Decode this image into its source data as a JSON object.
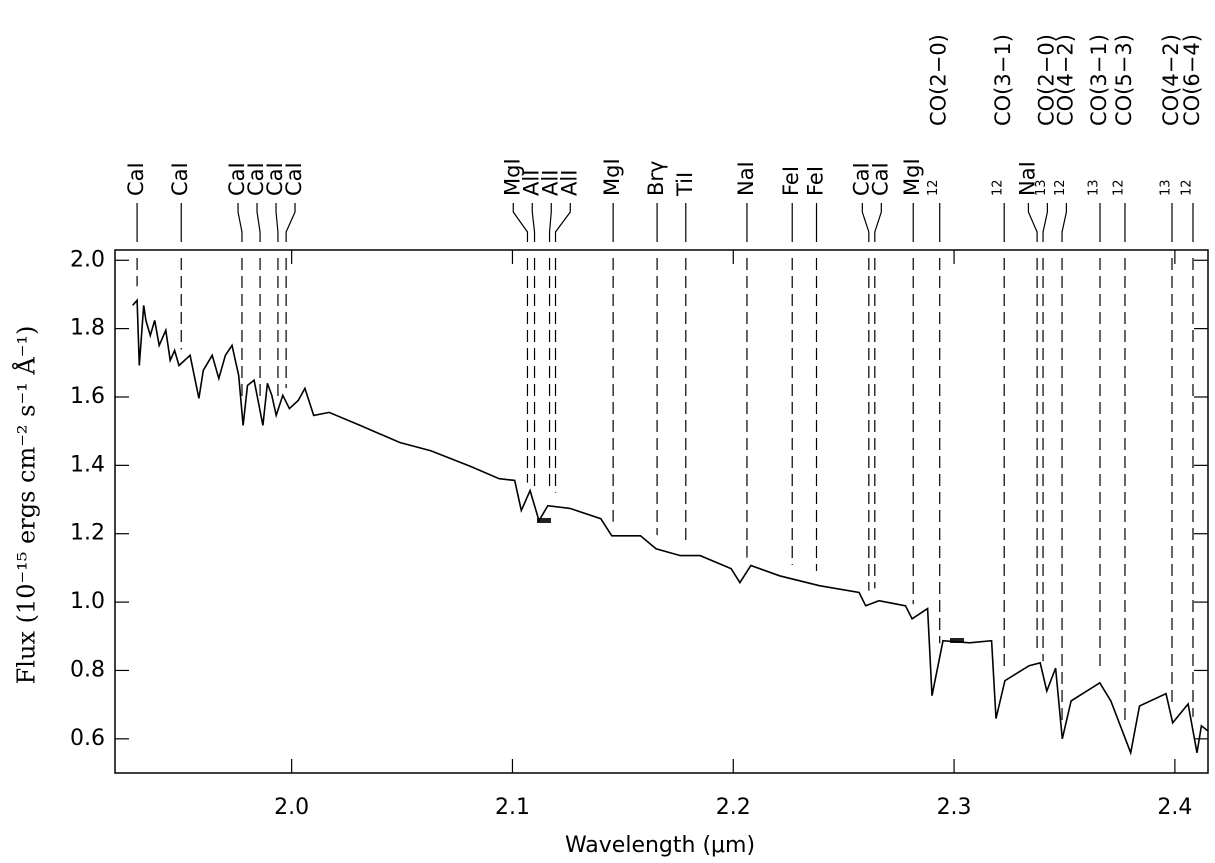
{
  "chart_data": {
    "type": "line",
    "xlabel": "Wavelength (μm)",
    "ylabel": "Flux (10⁻¹⁵ ergs cm⁻² s⁻¹ Å⁻¹)",
    "color": "#000000",
    "xlim": [
      1.92,
      2.415
    ],
    "ylim": [
      0.5,
      2.03
    ],
    "xticks": [
      {
        "value": 2.0,
        "label": "2.0"
      },
      2.1,
      2.2,
      2.3,
      2.4
    ],
    "yticks": [
      0.6,
      0.8,
      {
        "value": 1.0,
        "label": "1.0"
      },
      1.2,
      1.4,
      1.6,
      1.8,
      {
        "value": 2.0,
        "label": "2.0"
      }
    ],
    "x": [
      1.928,
      1.93,
      1.931,
      1.933,
      1.934,
      1.936,
      1.938,
      1.94,
      1.943,
      1.945,
      1.947,
      1.949,
      1.954,
      1.958,
      1.96,
      1.964,
      1.967,
      1.97,
      1.973,
      1.976,
      1.978,
      1.98,
      1.983,
      1.987,
      1.989,
      1.991,
      1.993,
      1.996,
      1.999,
      2.003,
      2.006,
      2.01,
      2.017,
      2.031,
      2.049,
      2.063,
      2.081,
      2.094,
      2.101,
      2.104,
      2.108,
      2.112,
      2.116,
      2.126,
      2.14,
      2.145,
      2.158,
      2.165,
      2.176,
      2.185,
      2.199,
      2.203,
      2.208,
      2.221,
      2.239,
      2.257,
      2.26,
      2.266,
      2.278,
      2.281,
      2.288,
      2.29,
      2.295,
      2.307,
      2.317,
      2.319,
      2.323,
      2.334,
      2.339,
      2.342,
      2.346,
      2.349,
      2.353,
      2.366,
      2.371,
      2.38,
      2.384,
      2.396,
      2.399,
      2.406,
      2.41,
      2.412,
      2.415
    ],
    "values": [
      1.868,
      1.883,
      1.692,
      1.868,
      1.824,
      1.78,
      1.824,
      1.751,
      1.795,
      1.707,
      1.736,
      1.692,
      1.722,
      1.596,
      1.678,
      1.722,
      1.654,
      1.722,
      1.751,
      1.663,
      1.517,
      1.634,
      1.649,
      1.517,
      1.64,
      1.605,
      1.546,
      1.605,
      1.566,
      1.59,
      1.625,
      1.546,
      1.555,
      1.517,
      1.467,
      1.443,
      1.397,
      1.361,
      1.356,
      1.268,
      1.326,
      1.238,
      1.282,
      1.274,
      1.244,
      1.194,
      1.194,
      1.156,
      1.136,
      1.136,
      1.098,
      1.057,
      1.107,
      1.077,
      1.048,
      1.028,
      0.989,
      1.004,
      0.989,
      0.951,
      0.981,
      0.726,
      0.887,
      0.881,
      0.887,
      0.659,
      0.77,
      0.814,
      0.822,
      0.74,
      0.807,
      0.6,
      0.711,
      0.764,
      0.711,
      0.559,
      0.696,
      0.732,
      0.647,
      0.702,
      0.559,
      0.638,
      0.623
    ],
    "line_identifications": [
      {
        "label": "CaI",
        "wavelength": 1.93
      },
      {
        "label": "CaI",
        "wavelength": 1.95
      },
      {
        "label": "CaI",
        "wavelength": 1.9775
      },
      {
        "label": "CaI",
        "wavelength": 1.9857
      },
      {
        "label": "CaI",
        "wavelength": 1.9938
      },
      {
        "label": "CaI",
        "wavelength": 1.9975
      },
      {
        "label": "MgI",
        "wavelength": 2.1068
      },
      {
        "label": "AlI",
        "wavelength": 2.11
      },
      {
        "label": "AlI",
        "wavelength": 2.1168
      },
      {
        "label": "AlI",
        "wavelength": 2.1195
      },
      {
        "label": "MgI",
        "wavelength": 2.1456
      },
      {
        "label": "Brγ",
        "wavelength": 2.1655
      },
      {
        "label": "TiI",
        "wavelength": 2.1785
      },
      {
        "label": "NaI",
        "wavelength": 2.2062
      },
      {
        "label": "FeI",
        "wavelength": 2.2267
      },
      {
        "label": "FeI",
        "wavelength": 2.2377
      },
      {
        "label": "CaI",
        "wavelength": 2.2614
      },
      {
        "label": "CaI",
        "wavelength": 2.2641
      },
      {
        "label": "MgI",
        "wavelength": 2.2815
      },
      {
        "label": "CO(2−0)",
        "isotope": "12",
        "wavelength": 2.2935
      },
      {
        "label": "CO(3−1)",
        "isotope": "12",
        "wavelength": 2.3227
      },
      {
        "label": "NaI",
        "wavelength": 2.3376
      },
      {
        "label": "CO(2−0)",
        "isotope": "13",
        "wavelength": 2.3403
      },
      {
        "label": "CO(4−2)",
        "isotope": "12",
        "wavelength": 2.3489
      },
      {
        "label": "CO(3−1)",
        "isotope": "13",
        "wavelength": 2.3661
      },
      {
        "label": "CO(5−3)",
        "isotope": "12",
        "wavelength": 2.3774
      },
      {
        "label": "CO(4−2)",
        "isotope": "13",
        "wavelength": 2.3987
      },
      {
        "label": "CO(6−4)",
        "isotope": "12",
        "wavelength": 2.4082
      }
    ]
  }
}
